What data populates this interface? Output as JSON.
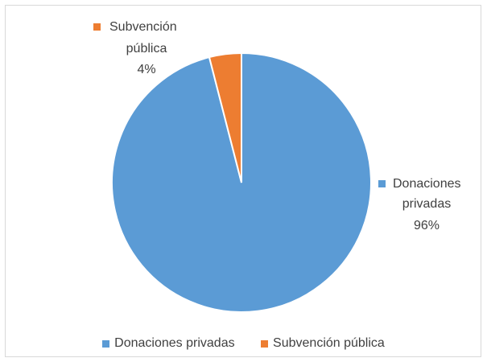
{
  "chart_data": {
    "type": "pie",
    "categories": [
      "Donaciones privadas",
      "Subvención pública"
    ],
    "values": [
      96,
      4
    ],
    "unit": "%",
    "colors": [
      "#5b9bd5",
      "#ed7d31"
    ],
    "data_labels": [
      {
        "category_lines": [
          "Donaciones",
          "privadas"
        ],
        "value": "96%"
      },
      {
        "category_lines": [
          "Subvención",
          "pública"
        ],
        "value": "4%"
      }
    ],
    "legend_position": "bottom",
    "start_angle_deg": 0,
    "direction": "clockwise"
  },
  "legend": {
    "items": [
      {
        "label": "Donaciones privadas",
        "color": "#5b9bd5"
      },
      {
        "label": "Subvención pública",
        "color": "#ed7d31"
      }
    ]
  }
}
